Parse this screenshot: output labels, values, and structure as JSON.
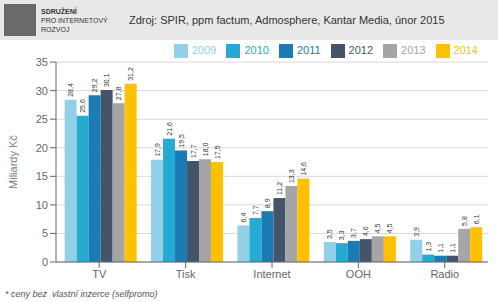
{
  "chart_data": {
    "type": "bar",
    "title": "Zdroj: SPIR, ppm factum, Admosphere, Kantar Media, únor 2015",
    "ylabel": "Miliardy Kč",
    "annotations": [
      "SDRUŽENÍ",
      "PRO INTERNETOVÝ",
      "ROZVOJ",
      "* ceny bez  vlastní inzerce (selfpromo)"
    ],
    "categories": [
      "TV",
      "Tisk",
      "Internet",
      "OOH",
      "Radio"
    ],
    "series": [
      {
        "name": "2009",
        "color": "#92d0e8",
        "values": [
          28.4,
          17.9,
          6.4,
          3.5,
          3.9
        ],
        "value_labels": [
          "28,4",
          "17,9",
          "6,4",
          "3,5",
          "3,9"
        ]
      },
      {
        "name": "2010",
        "color": "#25aad4",
        "values": [
          25.6,
          21.6,
          7.7,
          3.3,
          1.3
        ],
        "value_labels": [
          "25,6",
          "21,6",
          "7,7",
          "3,3",
          "1,3"
        ]
      },
      {
        "name": "2011",
        "color": "#1b7bb5",
        "values": [
          29.2,
          19.5,
          8.9,
          3.7,
          1.1
        ],
        "value_labels": [
          "29,2",
          "19,5",
          "8,9",
          "3,7",
          "1,1"
        ]
      },
      {
        "name": "2012",
        "color": "#44546a",
        "values": [
          30.1,
          17.7,
          11.2,
          4.0,
          1.1
        ],
        "value_labels": [
          "30,1",
          "17,7",
          "11,2",
          "4,0",
          "1,1"
        ]
      },
      {
        "name": "2013",
        "color": "#a5a5a5",
        "values": [
          27.8,
          18.0,
          13.3,
          4.5,
          5.8
        ],
        "value_labels": [
          "27,8",
          "18,0",
          "13,3",
          "4,5",
          "5,8"
        ]
      },
      {
        "name": "2014",
        "color": "#ffc000",
        "values": [
          31.2,
          17.5,
          14.6,
          4.5,
          6.1
        ],
        "value_labels": [
          "31,2",
          "17,5",
          "14,6",
          "4,5",
          "6,1"
        ]
      }
    ],
    "ylim": [
      0,
      35
    ],
    "yticks": [
      0,
      5,
      10,
      15,
      20,
      25,
      30,
      35
    ],
    "grid": true,
    "legend": "upper right",
    "data_labels": true
  }
}
